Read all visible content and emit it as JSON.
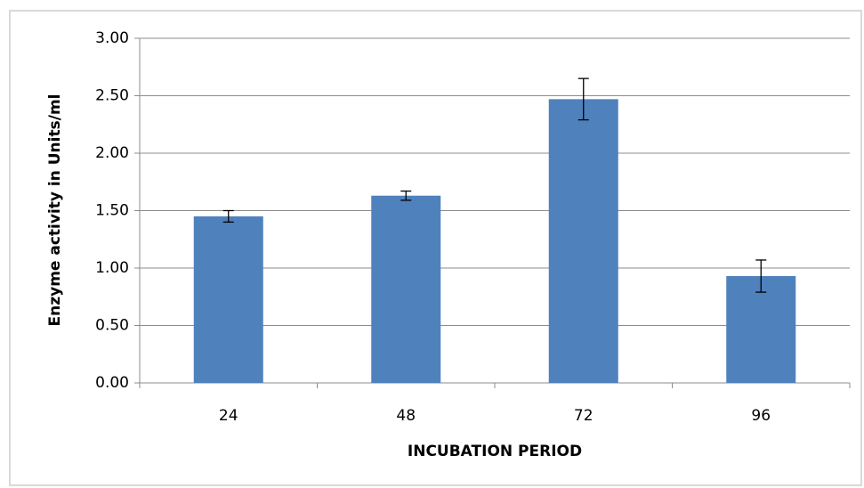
{
  "chart_data": {
    "type": "bar",
    "x_label": "INCUBATION  PERIOD",
    "y_label": "Enzyme  activity in Units/ml",
    "categories": [
      "24",
      "48",
      "72",
      "96"
    ],
    "values": [
      1.45,
      1.63,
      2.47,
      0.93
    ],
    "errors": [
      0.05,
      0.04,
      0.18,
      0.14
    ],
    "color": "#4f81bd",
    "ylim": [
      0,
      3
    ],
    "yticks": [
      {
        "value": 0,
        "label": "0.00"
      },
      {
        "value": 0.5,
        "label": "0.50"
      },
      {
        "value": 1,
        "label": "1.00"
      },
      {
        "value": 1.5,
        "label": "1.50"
      },
      {
        "value": 2,
        "label": "2.00"
      },
      {
        "value": 2.5,
        "label": "2.50"
      },
      {
        "value": 3,
        "label": "3.00"
      }
    ],
    "grid": true
  }
}
